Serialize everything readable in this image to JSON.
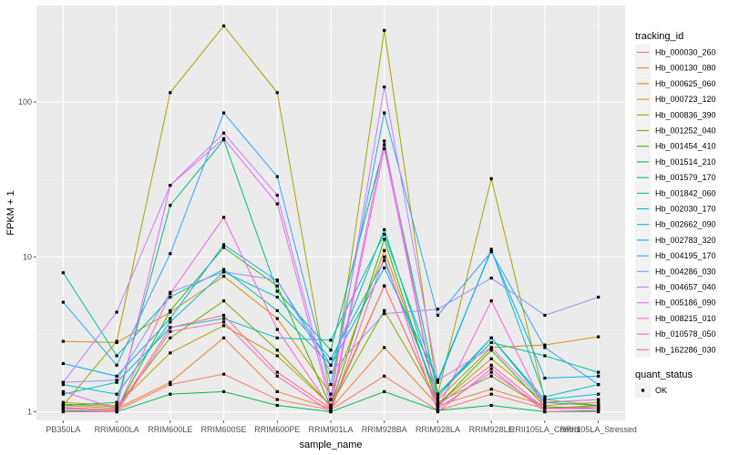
{
  "chart_data": {
    "type": "line",
    "xlabel": "sample_name",
    "ylabel": "FPKM + 1",
    "y_scale": "log10",
    "ylim": [
      0.88,
      420
    ],
    "y_ticks": [
      1,
      10,
      100
    ],
    "y_tick_labels": [
      "1",
      "10",
      "100"
    ],
    "grid": true,
    "legend_position": "right",
    "categories": [
      "PB350LA",
      "RRIM600LA",
      "RRIM600LE",
      "RRIM600SE",
      "RRIM600PE",
      "RRIM901LA",
      "RRIM928BA",
      "RRIM928LA",
      "RRIM928LE",
      "RRII105LA_Control",
      "RRII105LA_Stressed"
    ],
    "legend_title": "tracking_id",
    "legend_ids": [
      "Hb_000030_260",
      "Hb_000130_080",
      "Hb_000625_060",
      "Hb_000723_120",
      "Hb_000836_390",
      "Hb_001252_040",
      "Hb_001454_410",
      "Hb_001514_210",
      "Hb_001579_170",
      "Hb_001842_060",
      "Hb_002030_170",
      "Hb_002662_090",
      "Hb_002783_320",
      "Hb_004195_170",
      "Hb_004286_030",
      "Hb_004657_040",
      "Hb_005186_090",
      "Hb_008215_010",
      "Hb_010578_050",
      "Hb_162286_030"
    ],
    "series": [
      {
        "name": "Hb_000030_260",
        "color": "#F8766D",
        "values": [
          1.05,
          1.02,
          1.5,
          1.75,
          1.2,
          1.03,
          1.7,
          1.02,
          1.3,
          1.05,
          1.1
        ]
      },
      {
        "name": "Hb_000130_080",
        "color": "#EA8331",
        "values": [
          1.1,
          1.05,
          1.55,
          3.0,
          1.35,
          1.05,
          2.6,
          1.1,
          1.4,
          1.1,
          1.15
        ]
      },
      {
        "name": "Hb_000625_060",
        "color": "#D89000",
        "values": [
          2.85,
          2.8,
          4.4,
          7.5,
          4.0,
          1.3,
          11.0,
          1.2,
          2.6,
          2.7,
          3.05
        ]
      },
      {
        "name": "Hb_000723_120",
        "color": "#C09B00",
        "values": [
          1.15,
          1.1,
          2.4,
          3.6,
          2.3,
          1.1,
          6.5,
          1.12,
          2.2,
          1.15,
          1.2
        ]
      },
      {
        "name": "Hb_000836_390",
        "color": "#A3A500",
        "values": [
          1.1,
          2.85,
          115,
          310,
          115,
          1.2,
          290,
          1.3,
          32,
          1.2,
          1.1
        ]
      },
      {
        "name": "Hb_001252_040",
        "color": "#7CAE00",
        "values": [
          1.12,
          1.08,
          3.0,
          5.2,
          2.5,
          1.1,
          4.5,
          1.15,
          1.7,
          1.05,
          1.1
        ]
      },
      {
        "name": "Hb_001454_410",
        "color": "#39B600",
        "values": [
          1.05,
          1.03,
          4.5,
          11.5,
          6.5,
          1.08,
          13.0,
          1.1,
          2.5,
          1.08,
          1.05
        ]
      },
      {
        "name": "Hb_001514_210",
        "color": "#00BB4E",
        "values": [
          1.02,
          1.0,
          1.3,
          1.35,
          1.1,
          1.0,
          1.35,
          1.02,
          1.1,
          1.0,
          1.02
        ]
      },
      {
        "name": "Hb_001579_170",
        "color": "#00BF7D",
        "values": [
          1.1,
          1.15,
          21.5,
          57,
          6.0,
          2.5,
          53,
          1.3,
          3.0,
          1.15,
          1.1
        ]
      },
      {
        "name": "Hb_001842_060",
        "color": "#00C1A3",
        "values": [
          7.9,
          2.3,
          5.5,
          8.3,
          4.5,
          2.0,
          15.0,
          1.3,
          2.8,
          2.3,
          1.8
        ]
      },
      {
        "name": "Hb_002030_170",
        "color": "#00BFC4",
        "values": [
          1.3,
          1.55,
          3.5,
          4.0,
          3.0,
          2.9,
          14.0,
          1.55,
          11.2,
          1.25,
          1.5
        ]
      },
      {
        "name": "Hb_002662_090",
        "color": "#00BAE0",
        "values": [
          1.5,
          1.3,
          3.8,
          8.0,
          5.5,
          2.2,
          9.5,
          1.25,
          3.0,
          1.2,
          1.3
        ]
      },
      {
        "name": "Hb_002783_320",
        "color": "#00B0F6",
        "values": [
          2.05,
          1.7,
          4.0,
          12.0,
          7.0,
          2.0,
          8.5,
          1.6,
          11.0,
          1.65,
          1.7
        ]
      },
      {
        "name": "Hb_004195_170",
        "color": "#35A2FF",
        "values": [
          5.1,
          2.0,
          10.5,
          85,
          33,
          1.5,
          85,
          4.2,
          10.8,
          2.6,
          1.5
        ]
      },
      {
        "name": "Hb_004286_030",
        "color": "#9590FF",
        "values": [
          1.55,
          1.6,
          5.9,
          8.0,
          7.1,
          1.8,
          4.3,
          4.6,
          7.3,
          4.2,
          5.5
        ]
      },
      {
        "name": "Hb_004657_040",
        "color": "#C77CFF",
        "values": [
          1.55,
          4.4,
          29,
          63,
          25,
          1.2,
          125,
          1.6,
          2.6,
          1.15,
          1.2
        ]
      },
      {
        "name": "Hb_005186_090",
        "color": "#E76BF3",
        "values": [
          1.35,
          1.05,
          29,
          58,
          22,
          1.1,
          56,
          1.05,
          1.8,
          1.05,
          1.05
        ]
      },
      {
        "name": "Hb_008215_010",
        "color": "#FA62DB",
        "values": [
          1.05,
          1.02,
          5.8,
          18,
          3.4,
          1.05,
          50,
          1.05,
          5.2,
          1.05,
          1.05
        ]
      },
      {
        "name": "Hb_010578_050",
        "color": "#FF62BC",
        "values": [
          1.0,
          1.0,
          3.3,
          3.8,
          1.7,
          1.0,
          10.0,
          1.0,
          1.9,
          1.0,
          1.0
        ]
      },
      {
        "name": "Hb_162286_030",
        "color": "#FF6C91",
        "values": [
          1.07,
          1.02,
          3.5,
          4.2,
          1.8,
          1.05,
          6.5,
          1.1,
          2.0,
          1.05,
          1.08
        ]
      }
    ],
    "shape_legend": {
      "title": "quant_status",
      "items": [
        {
          "label": "OK",
          "shape": "square",
          "color": "#000000"
        }
      ]
    }
  }
}
